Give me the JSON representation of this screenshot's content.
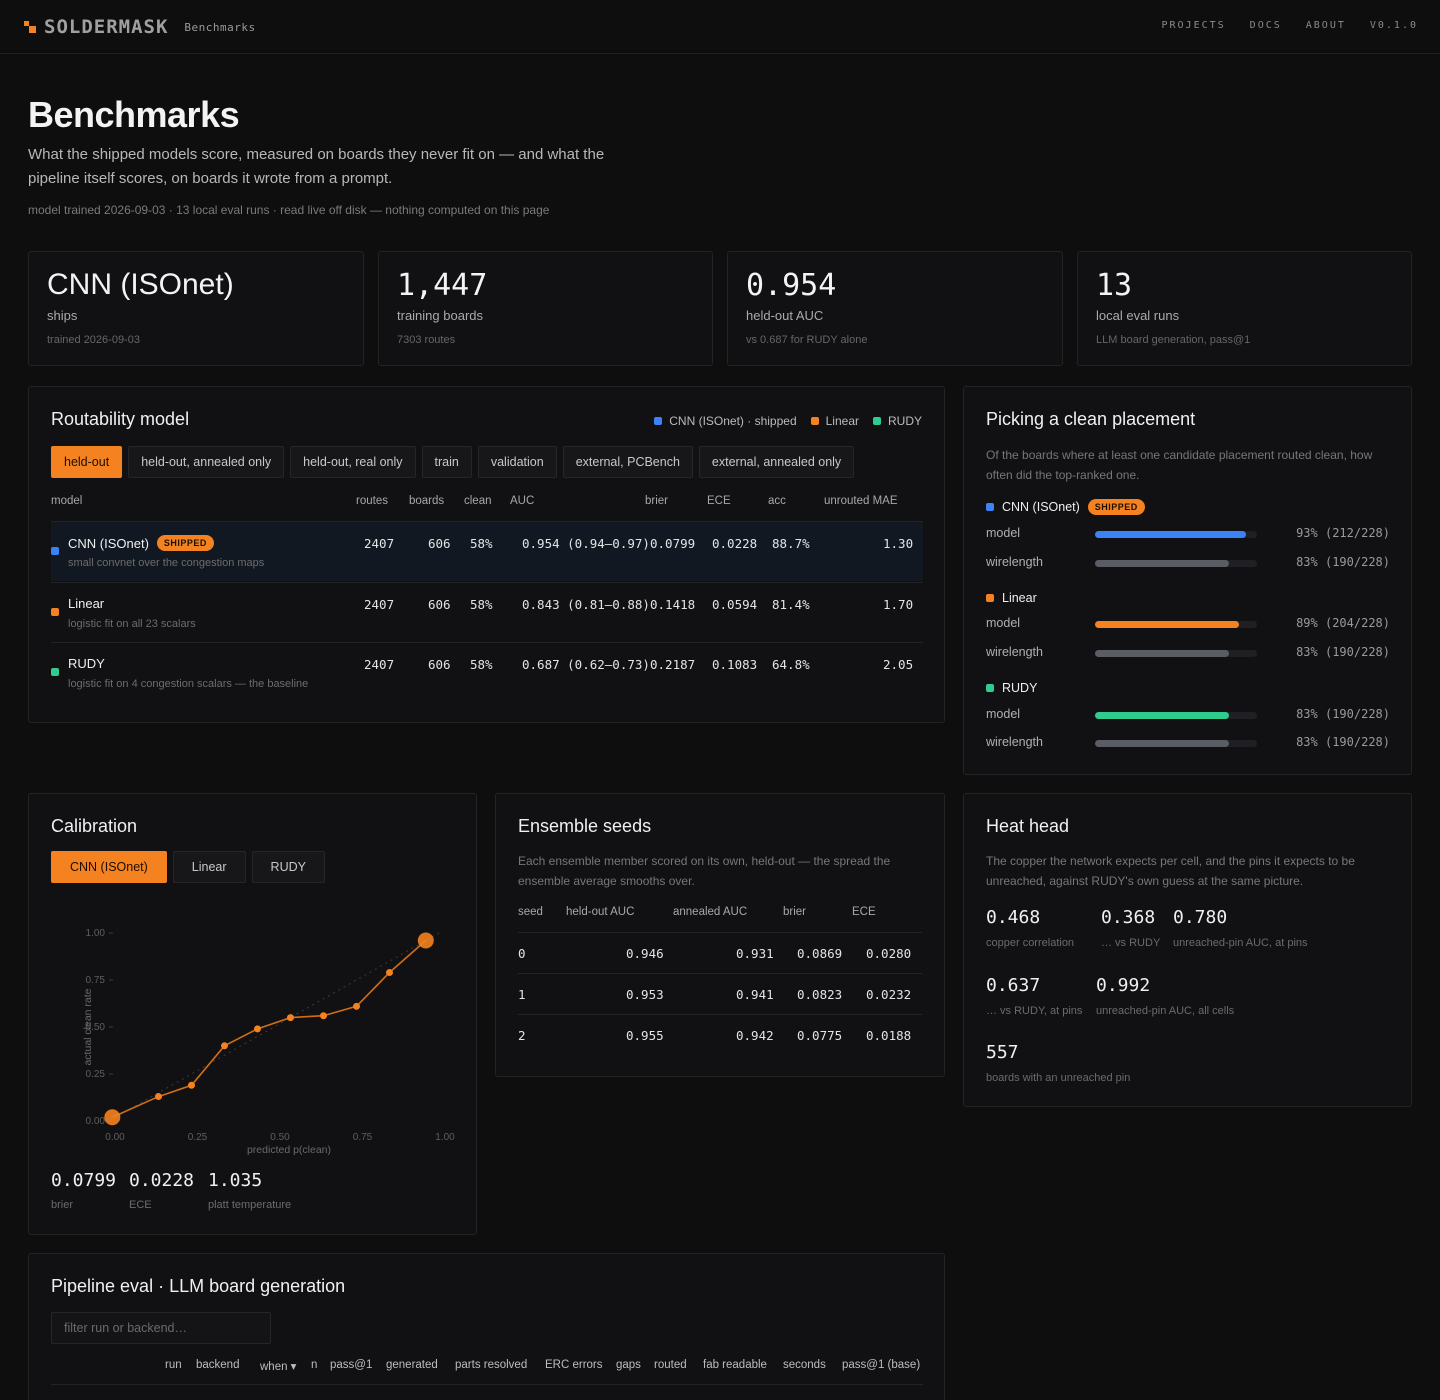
{
  "header": {
    "logo": "SOLDERMASK",
    "section": "Benchmarks",
    "nav": [
      "PROJECTS",
      "DOCS",
      "ABOUT",
      "V0.1.0"
    ]
  },
  "page": {
    "title": "Benchmarks",
    "subtitle": "What the shipped models score, measured on boards they never fit on — and what the pipeline itself scores, on boards it wrote from a prompt.",
    "meta": "model trained 2026-09-03 · 13 local eval runs · read live off disk — nothing computed on this page"
  },
  "stats": [
    {
      "big": "CNN (ISOnet)",
      "label": "ships",
      "small": "trained 2026-09-03"
    },
    {
      "big": "1,447",
      "label": "training boards",
      "small": "7303 routes"
    },
    {
      "big": "0.954",
      "label": "held-out AUC",
      "small": "vs 0.687 for RUDY alone"
    },
    {
      "big": "13",
      "label": "local eval runs",
      "small": "LLM board generation, pass@1"
    }
  ],
  "colors": {
    "accent": "#f58220",
    "cnn": "#3b82f6",
    "linear": "#f58220",
    "rudy": "#2ecc8f",
    "wire": "#5a5d63"
  },
  "routability": {
    "title": "Routability model",
    "legend": [
      "CNN (ISOnet) · shipped",
      "Linear",
      "RUDY"
    ],
    "tabs": [
      "held-out",
      "held-out, annealed only",
      "held-out, real only",
      "train",
      "validation",
      "external, PCBench",
      "external, annealed only"
    ],
    "columns": [
      "model",
      "routes",
      "boards",
      "clean",
      "AUC",
      "brier",
      "ECE",
      "acc",
      "unrouted MAE"
    ],
    "rows": [
      {
        "name": "CNN (ISOnet)",
        "badge": "SHIPPED",
        "desc": "small convnet over the congestion maps",
        "routes": "2407",
        "boards": "606",
        "clean": "58%",
        "auc": "0.954 (0.94–0.97)",
        "brier": "0.0799",
        "ece": "0.0228",
        "acc": "88.7%",
        "mae": "1.30"
      },
      {
        "name": "Linear",
        "badge": "",
        "desc": "logistic fit on all 23 scalars",
        "routes": "2407",
        "boards": "606",
        "clean": "58%",
        "auc": "0.843 (0.81–0.88)",
        "brier": "0.1418",
        "ece": "0.0594",
        "acc": "81.4%",
        "mae": "1.70"
      },
      {
        "name": "RUDY",
        "badge": "",
        "desc": "logistic fit on 4 congestion scalars — the baseline",
        "routes": "2407",
        "boards": "606",
        "clean": "58%",
        "auc": "0.687 (0.62–0.73)",
        "brier": "0.2187",
        "ece": "0.1083",
        "acc": "64.8%",
        "mae": "2.05"
      }
    ]
  },
  "placement": {
    "title": "Picking a clean placement",
    "desc": "Of the boards where at least one candidate placement routed clean, how often did the top-ranked one.",
    "groups": [
      {
        "name": "CNN (ISOnet)",
        "badge": "SHIPPED",
        "model": {
          "label": "model",
          "value": "93% (212/228)",
          "frac": 0.93
        },
        "wire": {
          "label": "wirelength",
          "value": "83% (190/228)",
          "frac": 0.83
        }
      },
      {
        "name": "Linear",
        "badge": "",
        "model": {
          "label": "model",
          "value": "89% (204/228)",
          "frac": 0.89
        },
        "wire": {
          "label": "wirelength",
          "value": "83% (190/228)",
          "frac": 0.83
        }
      },
      {
        "name": "RUDY",
        "badge": "",
        "model": {
          "label": "model",
          "value": "83% (190/228)",
          "frac": 0.83
        },
        "wire": {
          "label": "wirelength",
          "value": "83% (190/228)",
          "frac": 0.83
        }
      }
    ]
  },
  "calibration": {
    "title": "Calibration",
    "tabs": [
      "CNN (ISOnet)",
      "Linear",
      "RUDY"
    ],
    "stats": [
      {
        "value": "0.0799",
        "label": "brier"
      },
      {
        "value": "0.0228",
        "label": "ECE"
      },
      {
        "value": "1.035",
        "label": "platt temperature"
      }
    ]
  },
  "chart_data": {
    "type": "line",
    "title": "",
    "xlabel": "predicted p(clean)",
    "ylabel": "actual clean rate",
    "xlim": [
      0,
      1
    ],
    "ylim": [
      0,
      1
    ],
    "xticks": [
      "0.00",
      "0.25",
      "0.50",
      "0.75",
      "1.00"
    ],
    "yticks": [
      "0.00",
      "0.25",
      "0.50",
      "0.75",
      "1.00"
    ],
    "diagonal": true,
    "series": [
      {
        "x": [
          0.01,
          0.15,
          0.25,
          0.35,
          0.45,
          0.55,
          0.65,
          0.75,
          0.85,
          0.96
        ],
        "y": [
          0.02,
          0.13,
          0.19,
          0.4,
          0.49,
          0.55,
          0.56,
          0.61,
          0.79,
          0.96
        ],
        "emphasized": [
          0,
          9
        ]
      }
    ]
  },
  "ensemble": {
    "title": "Ensemble seeds",
    "desc": "Each ensemble member scored on its own, held-out — the spread the ensemble average smooths over.",
    "columns": [
      "seed",
      "held-out AUC",
      "annealed AUC",
      "brier",
      "ECE"
    ],
    "rows": [
      [
        "0",
        "0.946",
        "0.931",
        "0.0869",
        "0.0280"
      ],
      [
        "1",
        "0.953",
        "0.941",
        "0.0823",
        "0.0232"
      ],
      [
        "2",
        "0.955",
        "0.942",
        "0.0775",
        "0.0188"
      ]
    ]
  },
  "heat": {
    "title": "Heat head",
    "desc": "The copper the network expects per cell, and the pins it expects to be unreached, against RUDY's own guess at the same picture.",
    "stats": [
      {
        "value": "0.468",
        "label": "copper correlation"
      },
      {
        "value": "0.368",
        "label": "… vs RUDY"
      },
      {
        "value": "0.780",
        "label": "unreached-pin AUC, at pins"
      },
      {
        "value": "0.637",
        "label": "… vs RUDY, at pins"
      },
      {
        "value": "0.992",
        "label": "unreached-pin AUC, all cells"
      },
      {
        "value": "557",
        "label": "boards with an unreached pin"
      }
    ]
  },
  "pipeline": {
    "title": "Pipeline eval · LLM board generation",
    "filter_placeholder": "filter run or backend…",
    "columns": [
      "run",
      "backend",
      "when ▾",
      "n",
      "pass@1",
      "generated",
      "parts resolved",
      "ERC errors",
      "gaps",
      "routed",
      "fab readable",
      "seconds",
      "pass@1 (base)"
    ]
  }
}
